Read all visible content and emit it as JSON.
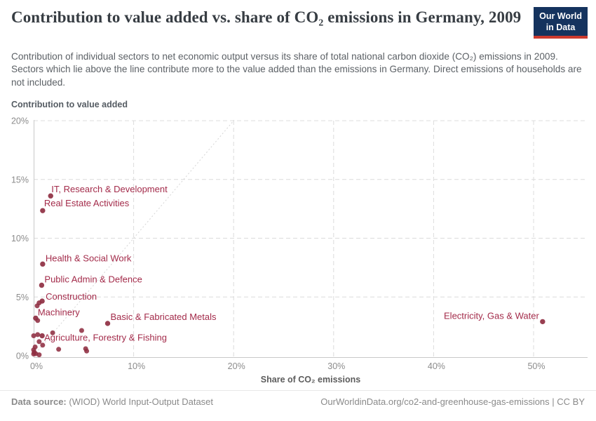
{
  "header": {
    "title": "Contribution to value added vs. share of CO₂ emissions in Germany, 2009",
    "logo": {
      "line1": "Our World",
      "line2": "in Data"
    }
  },
  "subtitle": "Contribution of individual sectors to net economic output versus its share of total national carbon dioxide (CO₂) emissions in 2009. Sectors which lie above the line contribute more to the value added than the emissions in Germany. Direct emissions of households are not included.",
  "chart_data": {
    "type": "scatter",
    "title": "Contribution to value added vs. share of CO₂ emissions in Germany, 2009",
    "xlabel": "Share of CO₂ emissions",
    "ylabel": "Contribution to value added",
    "xlim": [
      0,
      55.4
    ],
    "ylim": [
      0,
      20
    ],
    "x_ticks": [
      0,
      10,
      20,
      30,
      40,
      50
    ],
    "y_ticks": [
      0,
      5,
      10,
      15,
      20
    ],
    "tick_suffix": "%",
    "grid": true,
    "legend": "none",
    "parity_line": {
      "from": [
        0,
        0
      ],
      "to": [
        20.05,
        20.05
      ]
    },
    "series": [
      {
        "name": "labeled_sectors",
        "points": [
          {
            "label": "IT, Research & Development",
            "x": 1.7,
            "y": 13.6,
            "anchor": "start",
            "dx": 1,
            "dy": -5
          },
          {
            "label": "Real Estate Activities",
            "x": 0.9,
            "y": 12.35,
            "anchor": "start",
            "dx": 2,
            "dy": -6
          },
          {
            "label": "Health & Social Work",
            "x": 0.9,
            "y": 7.8,
            "anchor": "start",
            "dx": 4,
            "dy": -4
          },
          {
            "label": "Public Admin & Defence",
            "x": 0.8,
            "y": 6.0,
            "anchor": "start",
            "dx": 4,
            "dy": -4
          },
          {
            "label": "Construction",
            "x": 0.85,
            "y": 4.65,
            "anchor": "start",
            "dx": 5,
            "dy": -2
          },
          {
            "label": "Machinery",
            "x": 0.2,
            "y": 3.2,
            "anchor": "start",
            "dx": 3,
            "dy": -4
          },
          {
            "label": "Basic & Fabricated Metals",
            "x": 7.4,
            "y": 2.75,
            "anchor": "start",
            "dx": 4,
            "dy": -5
          },
          {
            "label": "Agriculture, Forestry & Fishing",
            "x": 0.85,
            "y": 1.7,
            "anchor": "start",
            "dx": 3,
            "dy": 7
          },
          {
            "label": "Electricity, Gas & Water",
            "x": 50.9,
            "y": 2.9,
            "anchor": "end",
            "dx": -5,
            "dy": -4
          }
        ]
      },
      {
        "name": "unlabeled_sectors",
        "points": [
          {
            "x": 0.55,
            "y": 4.5
          },
          {
            "x": 0.35,
            "y": 4.25
          },
          {
            "x": 0.4,
            "y": 3.0
          },
          {
            "x": 4.8,
            "y": 2.15
          },
          {
            "x": 1.9,
            "y": 1.95
          },
          {
            "x": 0.0,
            "y": 1.7
          },
          {
            "x": 0.4,
            "y": 1.8
          },
          {
            "x": 0.55,
            "y": 1.2
          },
          {
            "x": 0.9,
            "y": 0.9
          },
          {
            "x": 0.15,
            "y": 0.75
          },
          {
            "x": 0.0,
            "y": 0.5
          },
          {
            "x": 0.05,
            "y": 0.3
          },
          {
            "x": 0.2,
            "y": 0.18
          },
          {
            "x": 0.55,
            "y": 0.08
          },
          {
            "x": 0.0,
            "y": 0.15
          },
          {
            "x": 2.5,
            "y": 0.55
          },
          {
            "x": 5.2,
            "y": 0.6
          },
          {
            "x": 5.3,
            "y": 0.4
          }
        ]
      }
    ],
    "colors": {
      "point": "#8f2f42",
      "label": "#a32b4a",
      "grid": "#dcdcdc",
      "axis": "#c9c9c9",
      "tick_text": "#8c8c8c",
      "parity_line": "#d5d5d5"
    }
  },
  "footer": {
    "source_label": "Data source:",
    "source_text": " (WIOD) World Input-Output Dataset",
    "credit": "OurWorldinData.org/co2-and-greenhouse-gas-emissions | CC BY"
  }
}
